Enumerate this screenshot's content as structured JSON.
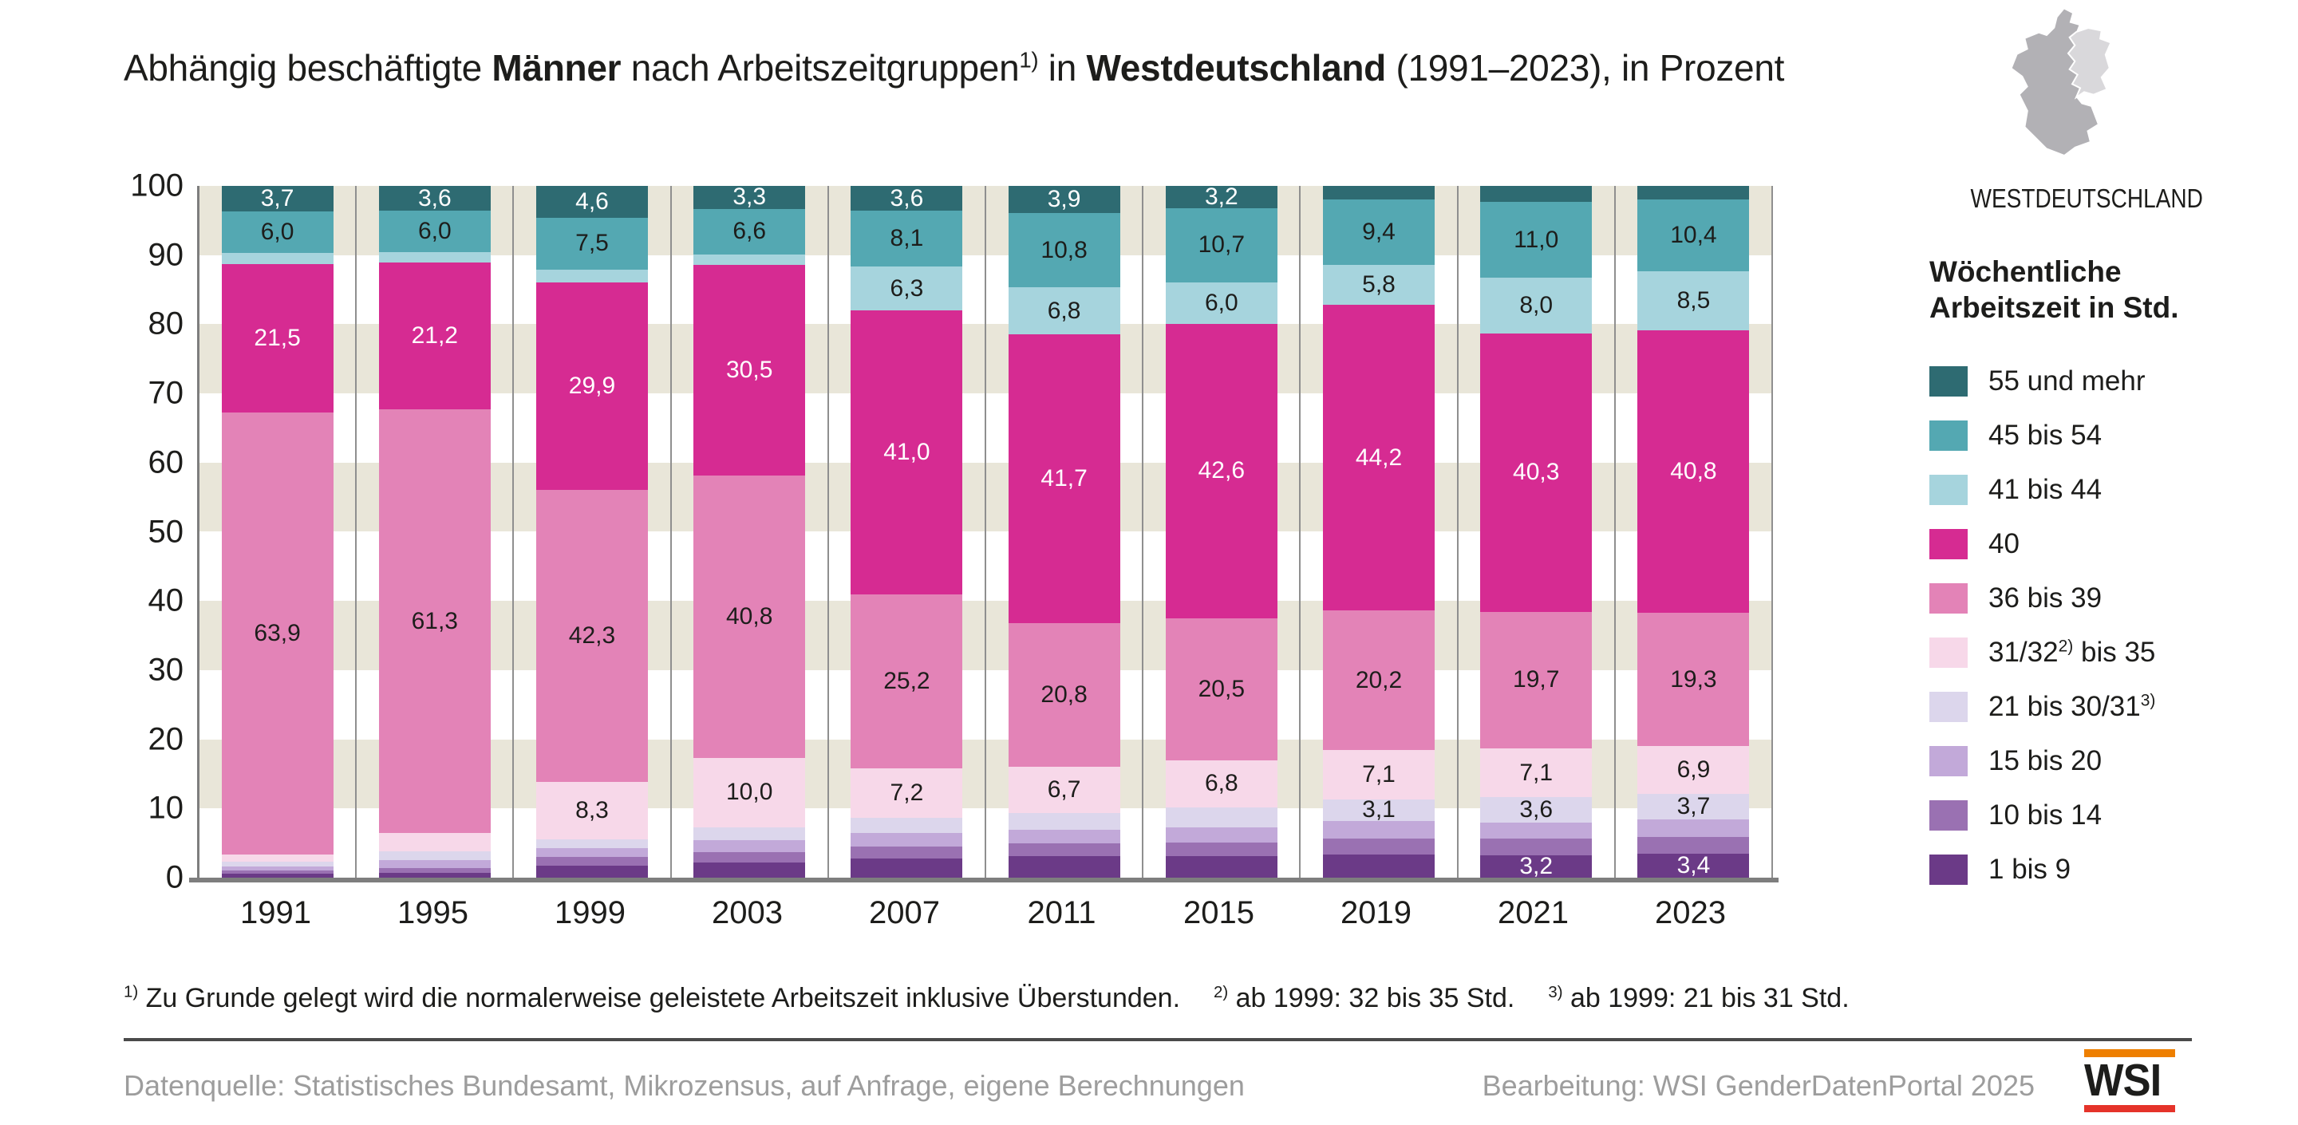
{
  "title": {
    "parts": [
      {
        "text": "Abhängig beschäftigte "
      },
      {
        "text": "Männer",
        "bold": true
      },
      {
        "text": " nach Arbeitszeitgruppen"
      },
      {
        "text": "1)",
        "sup": true
      },
      {
        "text": " in "
      },
      {
        "text": "Westdeutschland",
        "bold": true
      },
      {
        "text": " (1991–2023), in Prozent"
      }
    ]
  },
  "map": {
    "label": "WESTDEUTSCHLAND",
    "west_color": "#b2b1b5",
    "east_color": "#d9d8db"
  },
  "legend": {
    "title_line1": "Wöchentliche",
    "title_line2": "Arbeitszeit in Std."
  },
  "chart_data": {
    "type": "stacked_bar",
    "normalized_to": 100,
    "title": "Abhängig beschäftigte Männer nach Arbeitszeitgruppen in Westdeutschland (1991–2023), in Prozent",
    "xlabel": "",
    "ylabel": "Prozent",
    "ylim": [
      0,
      100
    ],
    "yticks": [
      0,
      10,
      20,
      30,
      40,
      50,
      60,
      70,
      80,
      90,
      100
    ],
    "grid_stripe_color": "#e9e6d9",
    "grid_stripe_bands": [
      [
        90,
        100
      ],
      [
        70,
        80
      ],
      [
        50,
        60
      ],
      [
        30,
        40
      ],
      [
        10,
        20
      ]
    ],
    "legend_position": "right",
    "categories": [
      "1991",
      "1995",
      "1999",
      "2003",
      "2007",
      "2011",
      "2015",
      "2019",
      "2021",
      "2023"
    ],
    "series": [
      {
        "name": "55 und mehr",
        "label_parts": [
          {
            "text": "55 und mehr"
          }
        ],
        "color": "#2e6b72",
        "text_color": "#ffffff",
        "values": [
          3.7,
          3.6,
          4.6,
          3.3,
          3.6,
          3.9,
          3.2,
          2.0,
          2.3,
          2.0
        ],
        "labels": [
          "3,7",
          "3,6",
          "4,6",
          "3,3",
          "3,6",
          "3,9",
          "3,2",
          null,
          null,
          null
        ]
      },
      {
        "name": "45 bis 54",
        "label_parts": [
          {
            "text": "45 bis 54"
          }
        ],
        "color": "#54a8b2",
        "text_color": "#1d1d1b",
        "values": [
          6.0,
          6.0,
          7.5,
          6.6,
          8.1,
          10.8,
          10.7,
          9.4,
          11.0,
          10.4
        ],
        "labels": [
          "6,0",
          "6,0",
          "7,5",
          "6,6",
          "8,1",
          "10,8",
          "10,7",
          "9,4",
          "11,0",
          "10,4"
        ]
      },
      {
        "name": "41 bis 44",
        "label_parts": [
          {
            "text": "41 bis 44"
          }
        ],
        "color": "#a6d4dd",
        "text_color": "#1d1d1b",
        "values": [
          1.6,
          1.5,
          1.9,
          1.5,
          6.3,
          6.8,
          6.0,
          5.8,
          8.0,
          8.5
        ],
        "labels": [
          null,
          null,
          null,
          null,
          "6,3",
          "6,8",
          "6,0",
          "5,8",
          "8,0",
          "8,5"
        ]
      },
      {
        "name": "40",
        "label_parts": [
          {
            "text": "40"
          }
        ],
        "color": "#d62b92",
        "text_color": "#ffffff",
        "values": [
          21.5,
          21.2,
          29.9,
          30.5,
          41.0,
          41.7,
          42.6,
          44.2,
          40.3,
          40.8
        ],
        "labels": [
          "21,5",
          "21,2",
          "29,9",
          "30,5",
          "41,0",
          "41,7",
          "42,6",
          "44,2",
          "40,3",
          "40,8"
        ]
      },
      {
        "name": "36 bis 39",
        "label_parts": [
          {
            "text": "36 bis 39"
          }
        ],
        "color": "#e383b7",
        "text_color": "#1d1d1b",
        "values": [
          63.9,
          61.3,
          42.3,
          40.8,
          25.2,
          20.8,
          20.5,
          20.2,
          19.7,
          19.3
        ],
        "labels": [
          "63,9",
          "61,3",
          "42,3",
          "40,8",
          "25,2",
          "20,8",
          "20,5",
          "20,2",
          "19,7",
          "19,3"
        ]
      },
      {
        "name": "31/32 bis 35",
        "label_parts": [
          {
            "text": "31/32"
          },
          {
            "text": "2)",
            "sup": true
          },
          {
            "text": " bis 35"
          }
        ],
        "color": "#f7d8e9",
        "text_color": "#1d1d1b",
        "values": [
          1.0,
          2.6,
          8.3,
          10.0,
          7.2,
          6.7,
          6.8,
          7.1,
          7.1,
          6.9
        ],
        "labels": [
          null,
          null,
          "8,3",
          "10,0",
          "7,2",
          "6,7",
          "6,8",
          "7,1",
          "7,1",
          "6,9"
        ]
      },
      {
        "name": "21 bis 30/31",
        "label_parts": [
          {
            "text": "21 bis 30/31"
          },
          {
            "text": "3)",
            "sup": true
          }
        ],
        "color": "#dcd6ec",
        "text_color": "#1d1d1b",
        "values": [
          0.7,
          1.3,
          1.2,
          1.9,
          2.2,
          2.4,
          2.9,
          3.1,
          3.6,
          3.7
        ],
        "labels": [
          null,
          null,
          null,
          null,
          null,
          null,
          null,
          "3,1",
          "3,6",
          "3,7"
        ]
      },
      {
        "name": "15 bis 20",
        "label_parts": [
          {
            "text": "15 bis 20"
          }
        ],
        "color": "#c2a9d9",
        "text_color": "#1d1d1b",
        "values": [
          0.6,
          1.1,
          1.3,
          1.7,
          1.9,
          2.0,
          2.2,
          2.5,
          2.4,
          2.5
        ],
        "labels": [
          null,
          null,
          null,
          null,
          null,
          null,
          null,
          null,
          null,
          null
        ]
      },
      {
        "name": "10 bis 14",
        "label_parts": [
          {
            "text": "10 bis 14"
          }
        ],
        "color": "#9a71b2",
        "text_color": "#1d1d1b",
        "values": [
          0.4,
          0.7,
          1.3,
          1.5,
          1.7,
          1.8,
          2.0,
          2.4,
          2.4,
          2.5
        ],
        "labels": [
          null,
          null,
          null,
          null,
          null,
          null,
          null,
          null,
          null,
          null
        ]
      },
      {
        "name": "1 bis 9",
        "label_parts": [
          {
            "text": "1 bis 9"
          }
        ],
        "color": "#6b3a87",
        "text_color": "#ffffff",
        "values": [
          0.6,
          0.7,
          1.7,
          2.2,
          2.8,
          3.1,
          3.1,
          3.3,
          3.2,
          3.4
        ],
        "labels": [
          null,
          null,
          null,
          null,
          null,
          null,
          null,
          null,
          "3,2",
          "3,4"
        ]
      }
    ]
  },
  "footnote": {
    "parts": [
      {
        "text": "1)",
        "sup": true
      },
      {
        "text": " Zu Grunde gelegt wird die normalerweise geleistete Arbeitszeit inklusive Überstunden."
      },
      {
        "text": "2)",
        "sup": true,
        "gap": true
      },
      {
        "text": " ab 1999: 32 bis 35 Std."
      },
      {
        "text": "3)",
        "sup": true,
        "gap": true
      },
      {
        "text": " ab 1999: 21 bis 31 Std."
      }
    ]
  },
  "footer": {
    "source": "Datenquelle: Statistisches Bundesamt, Mikrozensus, auf Anfrage, eigene Berechnungen",
    "credit": "Bearbeitung: WSI GenderDatenPortal 2025",
    "logo_text": "WSI",
    "logo_top_bar_color": "#ee7f00",
    "logo_bottom_bar_color": "#e5332a"
  }
}
